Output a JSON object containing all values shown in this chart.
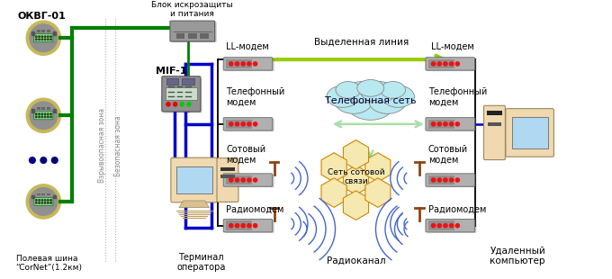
{
  "bg_color": "#ffffff",
  "wire_green": "#008000",
  "wire_blue": "#0000cd",
  "arrow_yellow_green": "#99cc00",
  "arrow_light_green": "#aaddaa",
  "radio_wave_color": "#4466cc",
  "cloud_color": "#b8e8f0",
  "hex_fill": "#f5e8b0",
  "hex_edge": "#cc8800",
  "modem_fill": "#a8a8a8",
  "modem_shade": "#707070",
  "modem_led": "#ee2222",
  "okvg_ring": "#c8b400",
  "okvg_body": "#909090",
  "okvg_screen": "#90ee90",
  "blok_fill": "#888888",
  "mif_fill": "#888888",
  "term_fill": "#f0d8b0",
  "term_screen": "#aed8f0",
  "rpc_fill": "#f0d8b0",
  "rpc_screen": "#aed8f0",
  "zone_color": "#b0b0b0",
  "labels": {
    "okbg": "ОКВГ-01",
    "blok": "Блок искрозащиты\nи питания",
    "mif": "MIF-1",
    "field_bus": "Полевая шина\n“CorNet”(1.2км)",
    "terminal": "Терминал\nоператора",
    "vz_zone": "Взрывоопасная зона",
    "safe_zone": "Безопасная зона",
    "ll_modem_l": "LL-модем",
    "ll_modem_r": "LL-модем",
    "tel_modem_l": "Телефонный\nмодем",
    "tel_modem_r": "Телефонный\nмодем",
    "cell_modem_l": "Сотовый\nмодем",
    "cell_modem_r": "Сотовый\nмодем",
    "radio_modem_l": "Радиомодем",
    "radio_modem_r": "Радиомодем",
    "tel_net": "Телефонная сеть",
    "cell_net": "Сеть сотовой\nсвязи",
    "radio_ch": "Радиоканал",
    "ded_line": "Выделенная линия",
    "remote_pc": "Удаленный\nкомпьютер"
  }
}
